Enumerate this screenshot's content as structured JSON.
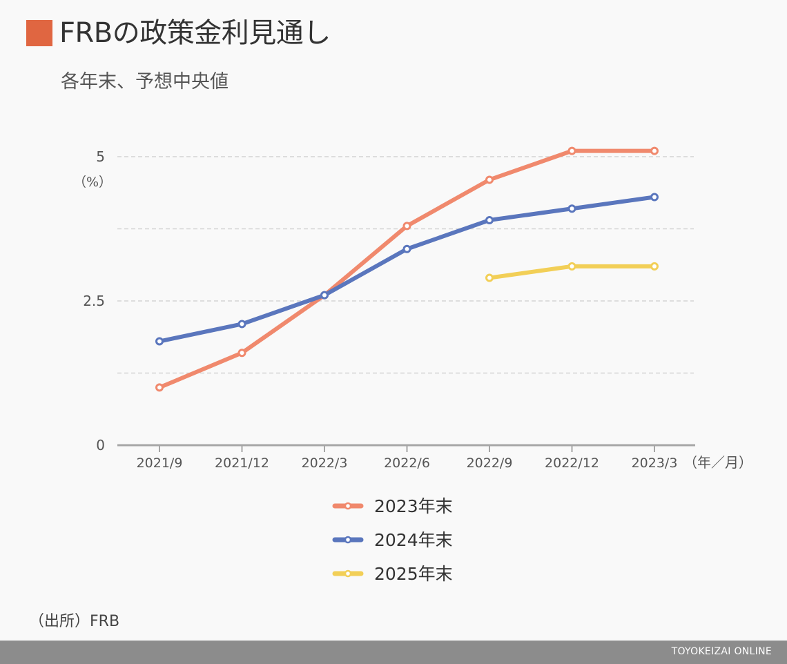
{
  "header": {
    "title": "FRBの政策金利見通し",
    "subtitle": "各年末、予想中央値",
    "accent_color": "#e06641"
  },
  "chart_data": {
    "type": "line",
    "title": "FRBの政策金利見通し",
    "subtitle": "各年末、予想中央値",
    "x": [
      "2021/9",
      "2021/12",
      "2022/3",
      "2022/6",
      "2022/9",
      "2022/12",
      "2023/3"
    ],
    "xlabel": "（年／月）",
    "ylabel": "（%）",
    "ylim": [
      0,
      5.5
    ],
    "yticks": [
      {
        "value": 0,
        "label": "0"
      },
      {
        "value": 2.5,
        "label": "2.5"
      },
      {
        "value": 5,
        "label": "5"
      }
    ],
    "gridlines": [
      1.25,
      2.5,
      3.75,
      5
    ],
    "grid": true,
    "legend_position": "bottom-center",
    "series": [
      {
        "name": "2023年末",
        "color": "#f0896d",
        "values": [
          1.0,
          1.6,
          2.6,
          3.8,
          4.6,
          5.1,
          5.1
        ]
      },
      {
        "name": "2024年末",
        "color": "#5a76bd",
        "values": [
          1.8,
          2.1,
          2.6,
          3.4,
          3.9,
          4.1,
          4.3
        ]
      },
      {
        "name": "2025年末",
        "color": "#f2cf57",
        "values": [
          null,
          null,
          null,
          null,
          2.9,
          3.1,
          3.1
        ]
      }
    ]
  },
  "footer": {
    "source": "（出所）FRB",
    "brand": "TOYOKEIZAI ONLINE",
    "bar_color": "#8c8c8c"
  }
}
